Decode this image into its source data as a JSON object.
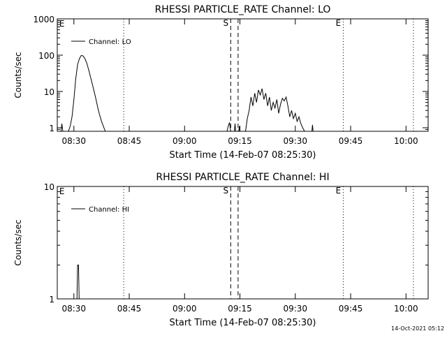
{
  "footer": {
    "timestamp": "14-Oct-2021 05:12"
  },
  "chart_data": [
    {
      "type": "line",
      "title": "RHESSI PARTICLE_RATE Channel: LO",
      "xlabel": "Start Time (14-Feb-07 08:25:30)",
      "ylabel": "Counts/sec",
      "yscale": "log",
      "xlim": [
        "08:25:30",
        "10:06:00"
      ],
      "ylim": [
        0.8,
        1000
      ],
      "xticks": [
        "08:30",
        "08:45",
        "09:00",
        "09:15",
        "09:30",
        "09:45",
        "10:00"
      ],
      "yticks": [
        {
          "value": 1,
          "label": "1"
        },
        {
          "value": 10,
          "label": "10"
        },
        {
          "value": 100,
          "label": "100"
        },
        {
          "value": 1000,
          "label": "1000"
        }
      ],
      "legend": {
        "position": "top-left",
        "entries": [
          "Channel: LO"
        ]
      },
      "markers": [
        {
          "time": "08:43:30",
          "style": "dotted",
          "label": "",
          "color": "#000000"
        },
        {
          "time": "09:12:30",
          "style": "dashed",
          "label": "S",
          "color": "#000000"
        },
        {
          "time": "09:14:30",
          "style": "dashed",
          "label": "",
          "color": "#000000"
        },
        {
          "time": "09:43:00",
          "style": "dotted",
          "label": "E",
          "color": "#000000"
        },
        {
          "time": "10:02:00",
          "style": "dotted",
          "label": "",
          "color": "#000000"
        }
      ],
      "corner_labels": [
        {
          "text": "E",
          "time": "08:25:40"
        }
      ],
      "series": [
        {
          "name": "Channel: LO",
          "segments": [
            [
              [
                "08:26:30",
                0.8
              ],
              [
                "08:26:45",
                1.3
              ],
              [
                "08:27:00",
                0.8
              ]
            ],
            [
              [
                "08:28:30",
                0.8
              ],
              [
                "08:29:00",
                1.1
              ],
              [
                "08:29:30",
                2.0
              ],
              [
                "08:30:00",
                6.0
              ],
              [
                "08:30:30",
                22.0
              ],
              [
                "08:31:00",
                55.0
              ],
              [
                "08:31:30",
                80.0
              ],
              [
                "08:32:00",
                98.0
              ],
              [
                "08:32:30",
                95.0
              ],
              [
                "08:33:00",
                80.0
              ],
              [
                "08:33:30",
                60.0
              ],
              [
                "08:34:00",
                40.0
              ],
              [
                "08:34:30",
                25.0
              ],
              [
                "08:35:00",
                16.0
              ],
              [
                "08:35:30",
                10.0
              ],
              [
                "08:36:00",
                6.0
              ],
              [
                "08:36:30",
                3.5
              ],
              [
                "08:37:00",
                2.2
              ],
              [
                "08:37:30",
                1.5
              ],
              [
                "08:38:00",
                1.1
              ],
              [
                "08:38:30",
                0.8
              ]
            ],
            [
              [
                "09:11:30",
                0.8
              ],
              [
                "09:11:50",
                1.1
              ],
              [
                "09:12:10",
                1.4
              ],
              [
                "09:12:30",
                0.8
              ]
            ],
            [
              [
                "09:13:30",
                0.8
              ],
              [
                "09:13:40",
                1.3
              ],
              [
                "09:13:50",
                0.8
              ]
            ],
            [
              [
                "09:14:40",
                0.8
              ],
              [
                "09:14:50",
                1.1
              ],
              [
                "09:15:00",
                0.8
              ]
            ],
            [
              [
                "09:16:30",
                0.8
              ],
              [
                "09:17:00",
                1.8
              ],
              [
                "09:17:30",
                3.0
              ],
              [
                "09:18:00",
                7.0
              ],
              [
                "09:18:30",
                4.0
              ],
              [
                "09:19:00",
                9.0
              ],
              [
                "09:19:30",
                5.0
              ],
              [
                "09:20:00",
                11.0
              ],
              [
                "09:20:30",
                8.0
              ],
              [
                "09:21:00",
                12.0
              ],
              [
                "09:21:30",
                6.0
              ],
              [
                "09:22:00",
                9.0
              ],
              [
                "09:22:30",
                4.0
              ],
              [
                "09:23:00",
                7.0
              ],
              [
                "09:23:30",
                3.0
              ],
              [
                "09:24:00",
                5.0
              ],
              [
                "09:24:30",
                3.5
              ],
              [
                "09:25:00",
                6.0
              ],
              [
                "09:25:30",
                2.5
              ],
              [
                "09:26:00",
                4.5
              ],
              [
                "09:26:30",
                6.5
              ],
              [
                "09:27:00",
                5.5
              ],
              [
                "09:27:30",
                7.0
              ],
              [
                "09:28:00",
                4.0
              ],
              [
                "09:28:30",
                2.0
              ],
              [
                "09:29:00",
                3.0
              ],
              [
                "09:29:30",
                1.8
              ],
              [
                "09:30:00",
                2.5
              ],
              [
                "09:30:30",
                1.5
              ],
              [
                "09:31:00",
                2.0
              ],
              [
                "09:31:30",
                1.3
              ],
              [
                "09:32:00",
                1.0
              ],
              [
                "09:32:30",
                0.8
              ]
            ],
            [
              [
                "09:34:30",
                0.8
              ],
              [
                "09:34:40",
                1.2
              ],
              [
                "09:34:50",
                0.8
              ]
            ]
          ]
        }
      ]
    },
    {
      "type": "line",
      "title": "RHESSI PARTICLE_RATE Channel: HI",
      "xlabel": "Start Time (14-Feb-07 08:25:30)",
      "ylabel": "Counts/sec",
      "yscale": "log",
      "xlim": [
        "08:25:30",
        "10:06:00"
      ],
      "ylim": [
        1,
        10
      ],
      "xticks": [
        "08:30",
        "08:45",
        "09:00",
        "09:15",
        "09:30",
        "09:45",
        "10:00"
      ],
      "yticks": [
        {
          "value": 1,
          "label": "1"
        },
        {
          "value": 10,
          "label": "10"
        }
      ],
      "legend": {
        "position": "top-left",
        "entries": [
          "Channel: HI"
        ]
      },
      "markers": [
        {
          "time": "08:43:30",
          "style": "dotted",
          "label": "",
          "color": "#000000"
        },
        {
          "time": "09:12:30",
          "style": "dashed",
          "label": "S",
          "color": "#000000"
        },
        {
          "time": "09:14:30",
          "style": "dashed",
          "label": "",
          "color": "#000000"
        },
        {
          "time": "09:43:00",
          "style": "dotted",
          "label": "E",
          "color": "#000000"
        },
        {
          "time": "10:02:00",
          "style": "dotted",
          "label": "",
          "color": "#000000"
        }
      ],
      "corner_labels": [
        {
          "text": "E",
          "time": "08:25:40"
        }
      ],
      "series": [
        {
          "name": "Channel: HI",
          "segments": [
            [
              [
                "08:30:50",
                1.0
              ],
              [
                "08:31:00",
                2.0
              ],
              [
                "08:31:15",
                2.0
              ],
              [
                "08:31:25",
                1.0
              ]
            ]
          ]
        }
      ]
    }
  ]
}
